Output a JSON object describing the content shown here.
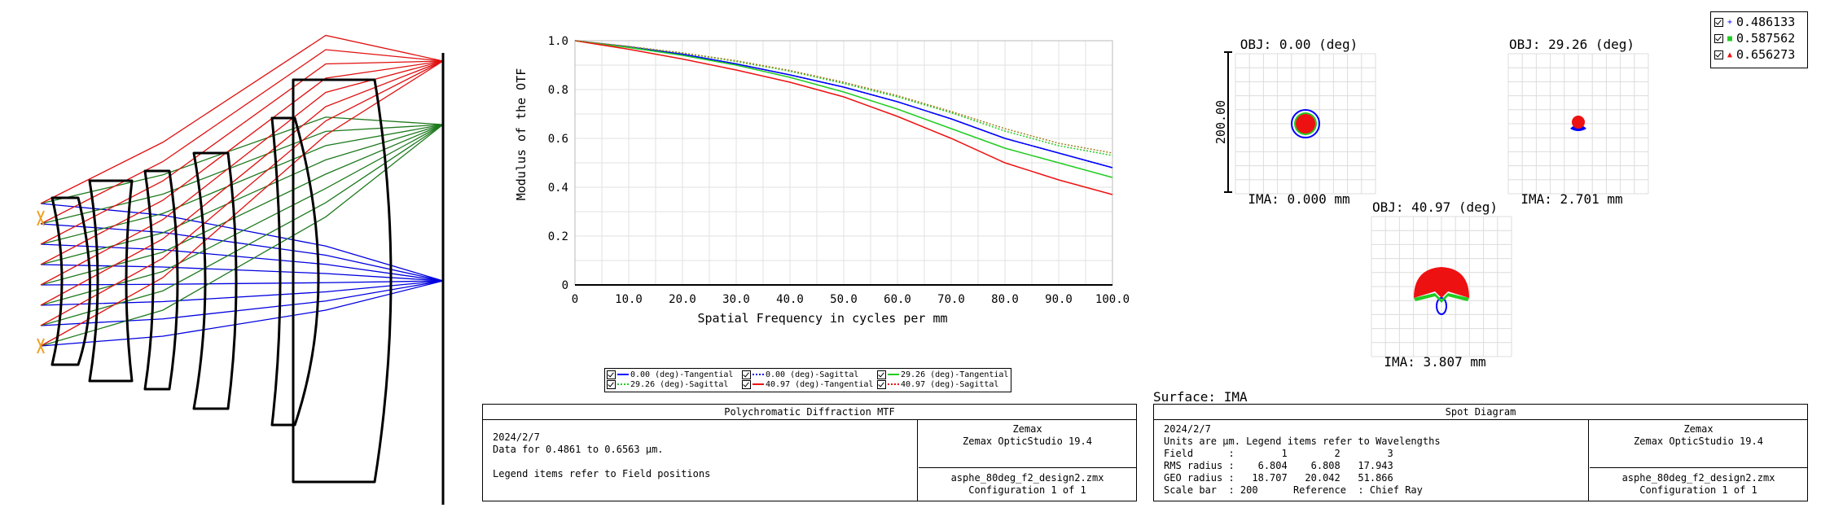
{
  "layout_plot": {
    "colors": {
      "field1": "#0000e0",
      "field2": "#1f7a1f",
      "field3": "#e01010",
      "lens": "#000000",
      "marker": "#f0a020"
    }
  },
  "mtf": {
    "ylabel": "Modulus of the OTF",
    "xlabel": "Spatial Frequency in cycles per mm",
    "y_ticks": [
      "0",
      "0.2",
      "0.4",
      "0.6",
      "0.8",
      "1.0"
    ],
    "x_ticks": [
      "0",
      "10.0",
      "20.0",
      "30.0",
      "40.0",
      "50.0",
      "60.0",
      "70.0",
      "80.0",
      "90.0",
      "100.0"
    ],
    "legend": [
      {
        "label": "0.00 (deg)-Tangential",
        "color": "#0000ff",
        "dash": "solid"
      },
      {
        "label": "0.00 (deg)-Sagittal",
        "color": "#0000ff",
        "dash": "dotted"
      },
      {
        "label": "29.26 (deg)-Tangential",
        "color": "#22cc22",
        "dash": "solid"
      },
      {
        "label": "29.26 (deg)-Sagittal",
        "color": "#22cc22",
        "dash": "dotted"
      },
      {
        "label": "40.97 (deg)-Tangential",
        "color": "#ee1111",
        "dash": "solid"
      },
      {
        "label": "40.97 (deg)-Sagittal",
        "color": "#ee1111",
        "dash": "dotted"
      }
    ],
    "panel": {
      "title": "Polychromatic Diffraction MTF",
      "date": "2024/2/7",
      "data_line": "Data for 0.4861 to 0.6563 µm.",
      "legend_note": "Legend items refer to Field positions",
      "company": "Zemax",
      "product": "Zemax OpticStudio 19.4",
      "file": "asphe_80deg_f2_design2.zmx",
      "config": "Configuration 1 of 1"
    }
  },
  "chart_data": {
    "type": "line",
    "title": "",
    "xlabel": "Spatial Frequency in cycles per mm",
    "ylabel": "Modulus of the OTF",
    "xlim": [
      0,
      100
    ],
    "ylim": [
      0,
      1
    ],
    "grid": true,
    "legend_position": "bottom",
    "x": [
      0,
      10,
      20,
      30,
      40,
      50,
      60,
      70,
      80,
      90,
      100
    ],
    "series": [
      {
        "name": "0.00 (deg)-Tangential",
        "values": [
          1.0,
          0.975,
          0.945,
          0.905,
          0.86,
          0.81,
          0.75,
          0.68,
          0.6,
          0.54,
          0.48
        ]
      },
      {
        "name": "0.00 (deg)-Sagittal",
        "values": [
          1.0,
          0.975,
          0.945,
          0.905,
          0.86,
          0.81,
          0.75,
          0.68,
          0.6,
          0.54,
          0.48
        ]
      },
      {
        "name": "29.26 (deg)-Tangential",
        "values": [
          1.0,
          0.972,
          0.94,
          0.9,
          0.85,
          0.79,
          0.72,
          0.64,
          0.56,
          0.5,
          0.44
        ]
      },
      {
        "name": "29.26 (deg)-Sagittal",
        "values": [
          1.0,
          0.976,
          0.95,
          0.915,
          0.875,
          0.825,
          0.77,
          0.705,
          0.63,
          0.57,
          0.53
        ]
      },
      {
        "name": "40.97 (deg)-Tangential",
        "values": [
          1.0,
          0.965,
          0.925,
          0.88,
          0.83,
          0.77,
          0.69,
          0.6,
          0.5,
          0.43,
          0.37
        ]
      },
      {
        "name": "40.97 (deg)-Sagittal",
        "values": [
          1.0,
          0.977,
          0.95,
          0.918,
          0.878,
          0.83,
          0.775,
          0.71,
          0.64,
          0.58,
          0.54
        ]
      }
    ]
  },
  "spot": {
    "wavelength_legend": [
      {
        "value": "0.486133",
        "color": "#0000ff",
        "symbol": "+"
      },
      {
        "value": "0.587562",
        "color": "#22cc22",
        "symbol": "■"
      },
      {
        "value": "0.656273",
        "color": "#ee1111",
        "symbol": "▲"
      }
    ],
    "scale_label": "200.00",
    "fields": [
      {
        "obj": "OBJ: 0.00 (deg)",
        "ima": "IMA: 0.000 mm"
      },
      {
        "obj": "OBJ: 29.26 (deg)",
        "ima": "IMA: 2.701 mm"
      },
      {
        "obj": "OBJ: 40.97 (deg)",
        "ima": "IMA: 3.807 mm"
      }
    ],
    "surface": "Surface: IMA",
    "panel": {
      "title": "Spot Diagram",
      "date": "2024/2/7",
      "units_line": "Units are µm. Legend items refer to Wavelengths",
      "field_line": "Field      :        1        2        3",
      "rms_line": "RMS radius :    6.804    6.808   17.943",
      "geo_line": "GEO radius :   18.707   20.042   51.866",
      "scale_line": "Scale bar  : 200      Reference  : Chief Ray",
      "company": "Zemax",
      "product": "Zemax OpticStudio 19.4",
      "file": "asphe_80deg_f2_design2.zmx",
      "config": "Configuration 1 of 1"
    }
  }
}
